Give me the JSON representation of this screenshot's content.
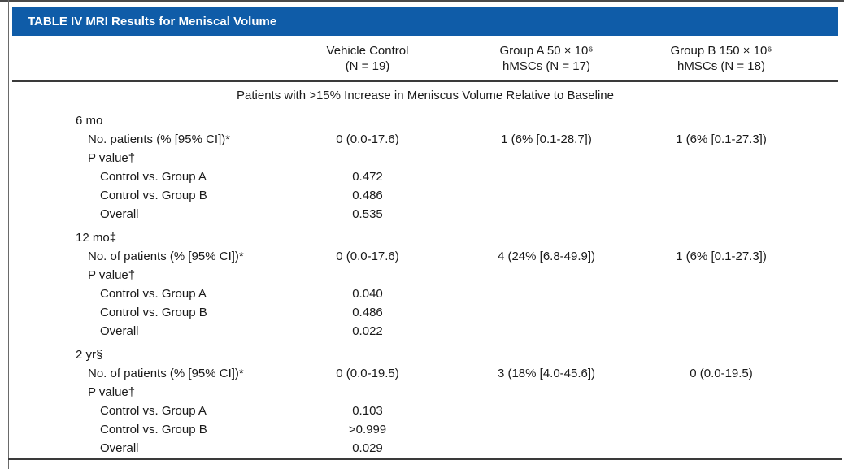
{
  "table": {
    "title": "TABLE IV MRI Results for Meniscal Volume",
    "columns": [
      {
        "line1": "Vehicle Control",
        "line2": "(N = 19)"
      },
      {
        "line1": "Group A 50 × 10⁶",
        "line2": "hMSCs (N = 17)"
      },
      {
        "line1": "Group B 150 × 10⁶",
        "line2": "hMSCs (N = 18)"
      }
    ],
    "span_header": "Patients with >15% Increase in Meniscus Volume Relative to Baseline",
    "sections": [
      {
        "label": "6 mo",
        "rows": [
          {
            "label": "No. patients (% [95% CI])*",
            "values": [
              "0 (0.0-17.6)",
              "1 (6% [0.1-28.7])",
              "1 (6% [0.1-27.3])"
            ]
          },
          {
            "label": "P value†",
            "values": [
              "",
              "",
              ""
            ]
          },
          {
            "label": "Control vs. Group A",
            "values": [
              "0.472",
              "",
              ""
            ]
          },
          {
            "label": "Control vs. Group B",
            "values": [
              "0.486",
              "",
              ""
            ]
          },
          {
            "label": "Overall",
            "values": [
              "0.535",
              "",
              ""
            ]
          }
        ]
      },
      {
        "label": "12 mo‡",
        "rows": [
          {
            "label": "No. of patients (% [95% CI])*",
            "values": [
              "0 (0.0-17.6)",
              "4 (24% [6.8-49.9])",
              "1 (6% [0.1-27.3])"
            ]
          },
          {
            "label": "P value†",
            "values": [
              "",
              "",
              ""
            ]
          },
          {
            "label": "Control vs. Group A",
            "values": [
              "0.040",
              "",
              ""
            ]
          },
          {
            "label": "Control vs. Group B",
            "values": [
              "0.486",
              "",
              ""
            ]
          },
          {
            "label": "Overall",
            "values": [
              "0.022",
              "",
              ""
            ]
          }
        ]
      },
      {
        "label": "2 yr§",
        "rows": [
          {
            "label": "No. of patients (% [95% CI])*",
            "values": [
              "0 (0.0-19.5)",
              "3 (18% [4.0-45.6])",
              "0 (0.0-19.5)"
            ]
          },
          {
            "label": "P value†",
            "values": [
              "",
              "",
              ""
            ]
          },
          {
            "label": "Control vs. Group A",
            "values": [
              "0.103",
              "",
              ""
            ]
          },
          {
            "label": "Control vs. Group B",
            "values": [
              ">0.999",
              "",
              ""
            ]
          },
          {
            "label": "Overall",
            "values": [
              "0.029",
              "",
              ""
            ]
          }
        ]
      }
    ],
    "colors": {
      "header_bg": "#0f5ca8",
      "header_text": "#ffffff",
      "body_text": "#1a1a1a",
      "rule": "#3a3a3a"
    }
  }
}
